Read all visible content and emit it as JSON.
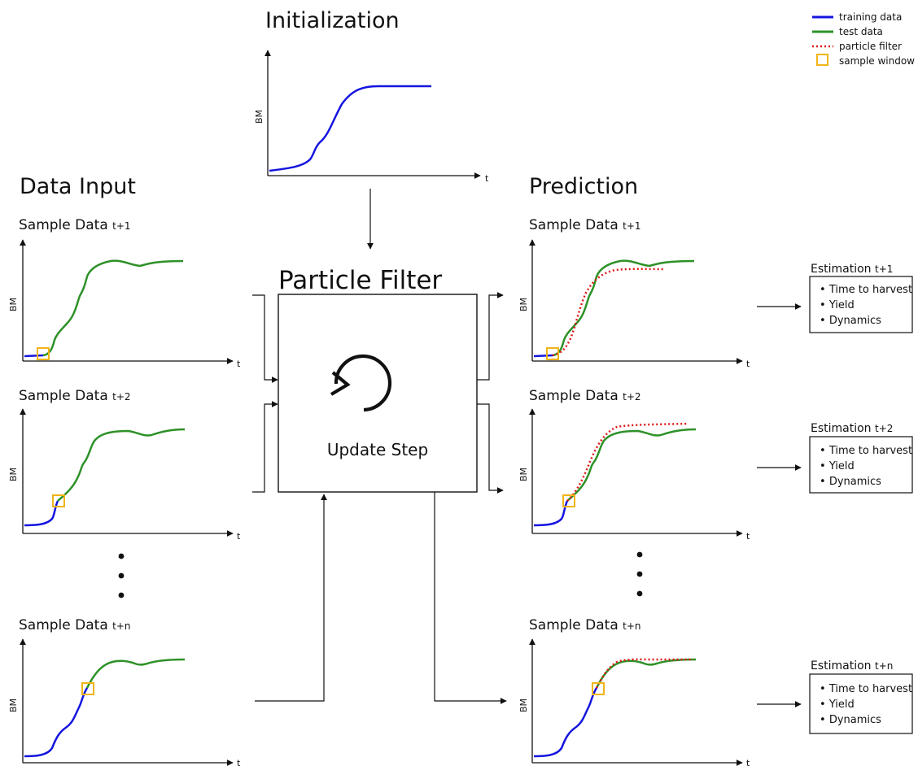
{
  "initialization": {
    "title": "Initialization",
    "y_label": "BM",
    "x_label": "t"
  },
  "data_input": {
    "title": "Data Input",
    "samples": [
      {
        "label": "Sample Data",
        "subscript": "t+1"
      },
      {
        "label": "Sample Data",
        "subscript": "t+2"
      },
      {
        "label": "Sample Data",
        "subscript": "t+n"
      }
    ],
    "y_label": "BM",
    "x_label": "t"
  },
  "particle_filter": {
    "title": "Particle Filter",
    "update_label": "Update Step",
    "icon": "refresh-icon"
  },
  "prediction": {
    "title": "Prediction",
    "samples": [
      {
        "label": "Sample Data",
        "subscript": "t+1"
      },
      {
        "label": "Sample Data",
        "subscript": "t+2"
      },
      {
        "label": "Sample Data",
        "subscript": "t+n"
      }
    ],
    "y_label": "BM",
    "x_label": "t"
  },
  "estimations": [
    {
      "label": "Estimation",
      "subscript": "t+1",
      "items": [
        "Time to harvest",
        "Yield",
        "Dynamics"
      ]
    },
    {
      "label": "Estimation",
      "subscript": "t+2",
      "items": [
        "Time to harvest",
        "Yield",
        "Dynamics"
      ]
    },
    {
      "label": "Estimation",
      "subscript": "t+n",
      "items": [
        "Time to harvest",
        "Yield",
        "Dynamics"
      ]
    }
  ],
  "legend": [
    {
      "label": "training data",
      "color": "#1515e0",
      "style": "solid-line"
    },
    {
      "label": "test data",
      "color": "#2e9128",
      "style": "solid-line"
    },
    {
      "label": "particle filter",
      "color": "#e01818",
      "style": "dotted-line"
    },
    {
      "label": "sample window",
      "color": "#f0b418",
      "style": "square"
    }
  ],
  "colors": {
    "training": "#1515e0",
    "test": "#2e9128",
    "filter": "#e01818",
    "window": "#f0b418"
  }
}
